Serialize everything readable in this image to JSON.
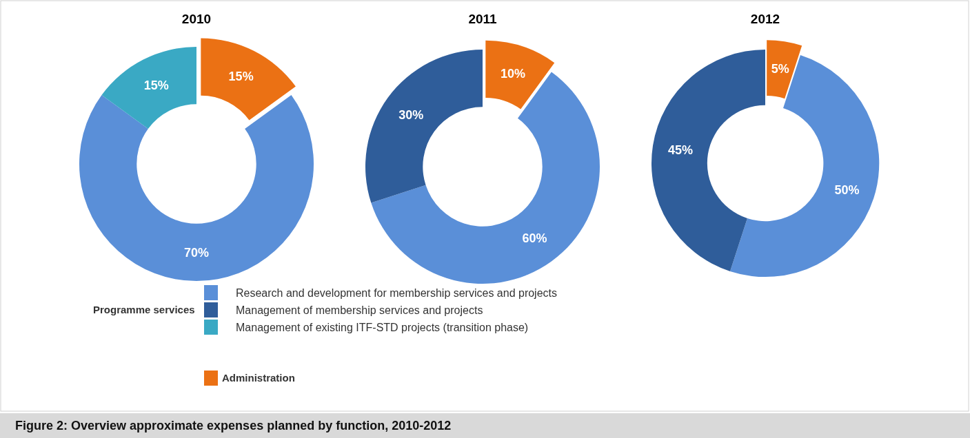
{
  "chart_data": [
    {
      "type": "donut",
      "title": "2010",
      "categories": [
        "Research and development for membership services and projects",
        "Management of membership services and projects",
        "Management of existing ITF-STD projects (transition phase)",
        "Administration"
      ],
      "values": [
        70,
        null,
        15,
        15
      ],
      "value_labels": [
        "70%",
        null,
        "15%",
        "15%"
      ],
      "colors": [
        "#5a8fd8",
        "#2f5d9a",
        "#3aa9c4",
        "#eb7114"
      ],
      "legend": "bottom",
      "legend_title": "Programme services",
      "annotations": [
        "Figure 2: Overview approximate expenses planned by function, 2010-2012"
      ]
    },
    {
      "type": "donut",
      "title": "2011",
      "categories": [
        null,
        null,
        null
      ],
      "values": [
        60,
        30,
        10
      ],
      "value_labels": [
        "60%",
        "30%",
        "10%"
      ],
      "colors": [
        "#5a8fd8",
        "#2f5d9a",
        "#eb7114"
      ]
    },
    {
      "type": "donut",
      "title": "2012",
      "categories": [
        null,
        null,
        null
      ],
      "values": [
        50,
        45,
        5
      ],
      "value_labels": [
        "50%",
        "45%",
        "5%"
      ],
      "colors": [
        "#5a8fd8",
        "#2f5d9a",
        "#eb7114"
      ]
    }
  ]
}
